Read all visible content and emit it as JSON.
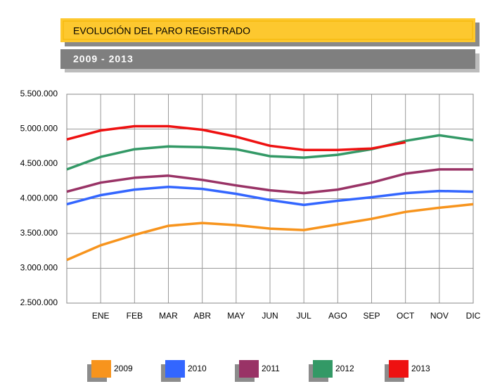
{
  "chart_data": {
    "type": "line",
    "title": "EVOLUCIÓN DEL PARO REGISTRADO",
    "subtitle": "2009 - 2013",
    "categories": [
      null,
      "ENE",
      "FEB",
      "MAR",
      "ABR",
      "MAY",
      "JUN",
      "JUL",
      "AGO",
      "SEP",
      "OCT",
      "NOV",
      "DIC"
    ],
    "series": [
      {
        "name": "2009",
        "color": "#f7941d",
        "values": [
          3120000,
          3330000,
          3480000,
          3610000,
          3650000,
          3620000,
          3570000,
          3550000,
          3630000,
          3710000,
          3810000,
          3870000,
          3920000
        ]
      },
      {
        "name": "2010",
        "color": "#3366ff",
        "values": [
          3920000,
          4050000,
          4130000,
          4170000,
          4140000,
          4070000,
          3980000,
          3910000,
          3970000,
          4020000,
          4080000,
          4110000,
          4100000
        ]
      },
      {
        "name": "2011",
        "color": "#993366",
        "values": [
          4100000,
          4230000,
          4300000,
          4330000,
          4270000,
          4190000,
          4120000,
          4080000,
          4130000,
          4230000,
          4360000,
          4420000,
          4420000
        ]
      },
      {
        "name": "2012",
        "color": "#339966",
        "values": [
          4420000,
          4600000,
          4710000,
          4750000,
          4740000,
          4710000,
          4610000,
          4590000,
          4630000,
          4710000,
          4830000,
          4910000,
          4840000
        ]
      },
      {
        "name": "2013",
        "color": "#ee1111",
        "values": [
          4850000,
          4980000,
          5040000,
          5040000,
          4990000,
          4890000,
          4760000,
          4700000,
          4700000,
          4720000,
          4810000,
          null,
          null
        ]
      }
    ],
    "ylim": [
      2500000,
      5500000
    ],
    "yticks": [
      {
        "value": 2500000,
        "label": "2.500.000"
      },
      {
        "value": 3000000,
        "label": "3.000.000"
      },
      {
        "value": 3500000,
        "label": "3.500.000"
      },
      {
        "value": 4000000,
        "label": "4.000.000"
      },
      {
        "value": 4500000,
        "label": "4.500.000"
      },
      {
        "value": 5000000,
        "label": "5.000.000"
      },
      {
        "value": 5500000,
        "label": "5.500.000"
      }
    ],
    "grid": true,
    "legend": "bottom"
  }
}
